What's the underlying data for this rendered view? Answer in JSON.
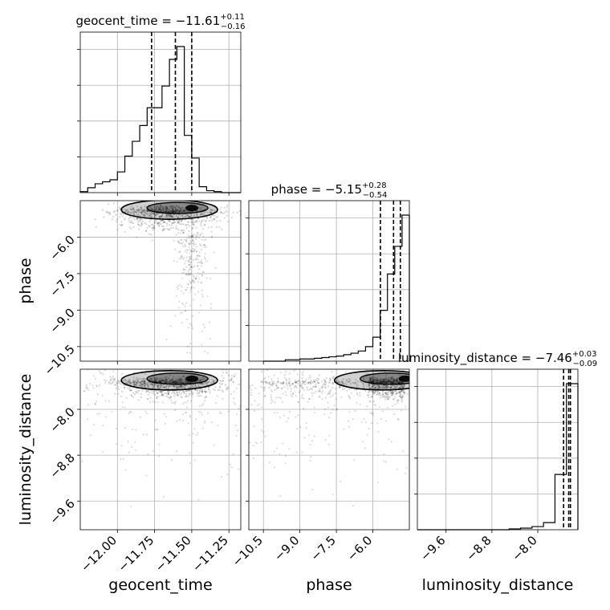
{
  "chart_data": {
    "type": "corner",
    "parameters": [
      "geocent_time",
      "phase",
      "luminosity_distance"
    ],
    "titles": [
      {
        "param": "geocent_time",
        "label": "geocent_time",
        "median": "−11.61",
        "plus": "+0.11",
        "minus": "−0.16"
      },
      {
        "param": "phase",
        "label": "phase",
        "median": "−5.15",
        "plus": "+0.28",
        "minus": "−0.54"
      },
      {
        "param": "luminosity_distance",
        "label": "luminosity_distance",
        "median": "−7.46",
        "plus": "+0.03",
        "minus": "−0.09"
      }
    ],
    "ranges": {
      "geocent_time": [
        -12.25,
        -11.17
      ],
      "phase": [
        -11.1,
        -4.5
      ],
      "luminosity_distance": [
        -10.1,
        -7.3
      ]
    },
    "ticks": {
      "geocent_time": {
        "values": [
          -12.0,
          -11.75,
          -11.5,
          -11.25
        ],
        "labels": [
          "−12.00",
          "−11.75",
          "−11.50",
          "−11.25"
        ]
      },
      "phase": {
        "values": [
          -10.5,
          -9.0,
          -7.5,
          -6.0
        ],
        "labels": [
          "−10.5",
          "−9.0",
          "−7.5",
          "−6.0"
        ]
      },
      "luminosity_distance": {
        "values": [
          -9.6,
          -8.8,
          -8.0
        ],
        "labels": [
          "−9.6",
          "−8.8",
          "−8.0"
        ]
      }
    },
    "quantiles": {
      "geocent_time": [
        -11.77,
        -11.61,
        -11.5
      ],
      "phase": [
        -5.69,
        -5.15,
        -4.87
      ],
      "luminosity_distance": [
        -7.55,
        -7.46,
        -7.43
      ]
    },
    "histograms": {
      "geocent_time": {
        "edges": [
          -12.25,
          -12.2,
          -12.15,
          -12.1,
          -12.05,
          -12.0,
          -11.95,
          -11.9,
          -11.85,
          -11.8,
          -11.75,
          -11.7,
          -11.65,
          -11.6,
          -11.55,
          -11.5,
          -11.45,
          -11.4,
          -11.35,
          -11.3,
          -11.25,
          -11.2,
          -11.17
        ],
        "counts": [
          1,
          5,
          9,
          11,
          13,
          21,
          37,
          52,
          68,
          86,
          86,
          108,
          135,
          148,
          58,
          35,
          6,
          2,
          1,
          0,
          0,
          0
        ]
      },
      "phase": {
        "edges": [
          -10.5,
          -10.2,
          -9.9,
          -9.6,
          -9.3,
          -9.0,
          -8.7,
          -8.4,
          -8.1,
          -7.8,
          -7.5,
          -7.2,
          -6.9,
          -6.6,
          -6.3,
          -6.0,
          -5.7,
          -5.4,
          -5.1,
          -4.8,
          -4.5
        ],
        "counts": [
          0,
          0,
          0,
          2,
          2,
          3,
          3,
          4,
          5,
          6,
          7,
          9,
          11,
          14,
          20,
          33,
          70,
          120,
          158,
          201
        ]
      },
      "luminosity_distance": {
        "edges": [
          -10.1,
          -9.9,
          -9.7,
          -9.5,
          -9.3,
          -9.1,
          -8.9,
          -8.7,
          -8.5,
          -8.3,
          -8.1,
          -7.9,
          -7.7,
          -7.5,
          -7.3
        ],
        "counts": [
          0,
          0,
          0,
          0,
          0,
          0,
          0,
          0,
          1,
          2,
          4,
          9,
          70,
          185
        ]
      }
    },
    "scatter_density": [
      {
        "x": "geocent_time",
        "y": "phase",
        "note": "dense band near phase -5 across geocent_time -12.2 to -11.4, tail toward phase -10 near geocent_time -11.5"
      },
      {
        "x": "geocent_time",
        "y": "luminosity_distance",
        "note": "dense band near luminosity_distance -7.5, sparse tail toward -10"
      },
      {
        "x": "phase",
        "y": "luminosity_distance",
        "note": "dense band near luminosity_distance -7.5 and phase -5, sparse tail"
      }
    ],
    "grid": true
  }
}
